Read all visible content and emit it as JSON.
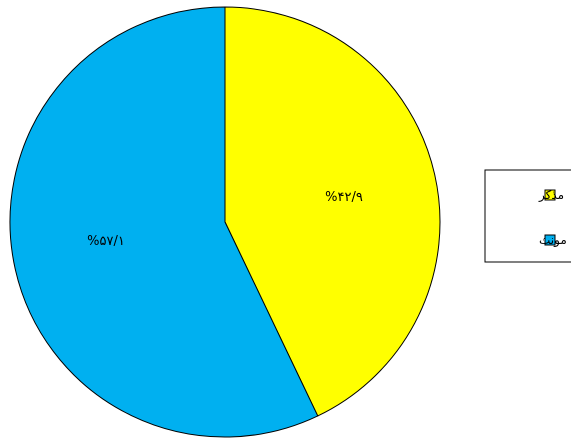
{
  "chart_data": {
    "type": "pie",
    "title": "",
    "categories": [
      "مذکر",
      "مونث"
    ],
    "values": [
      42.9,
      57.1
    ],
    "data_labels": [
      "%۴۲/۹",
      "%۵۷/۱"
    ],
    "colors": [
      "#ffff00",
      "#00b0f0"
    ],
    "start": "top",
    "direction": "clockwise",
    "legend": {
      "position": "right",
      "entries": [
        "مذکر",
        "مونث"
      ]
    }
  }
}
